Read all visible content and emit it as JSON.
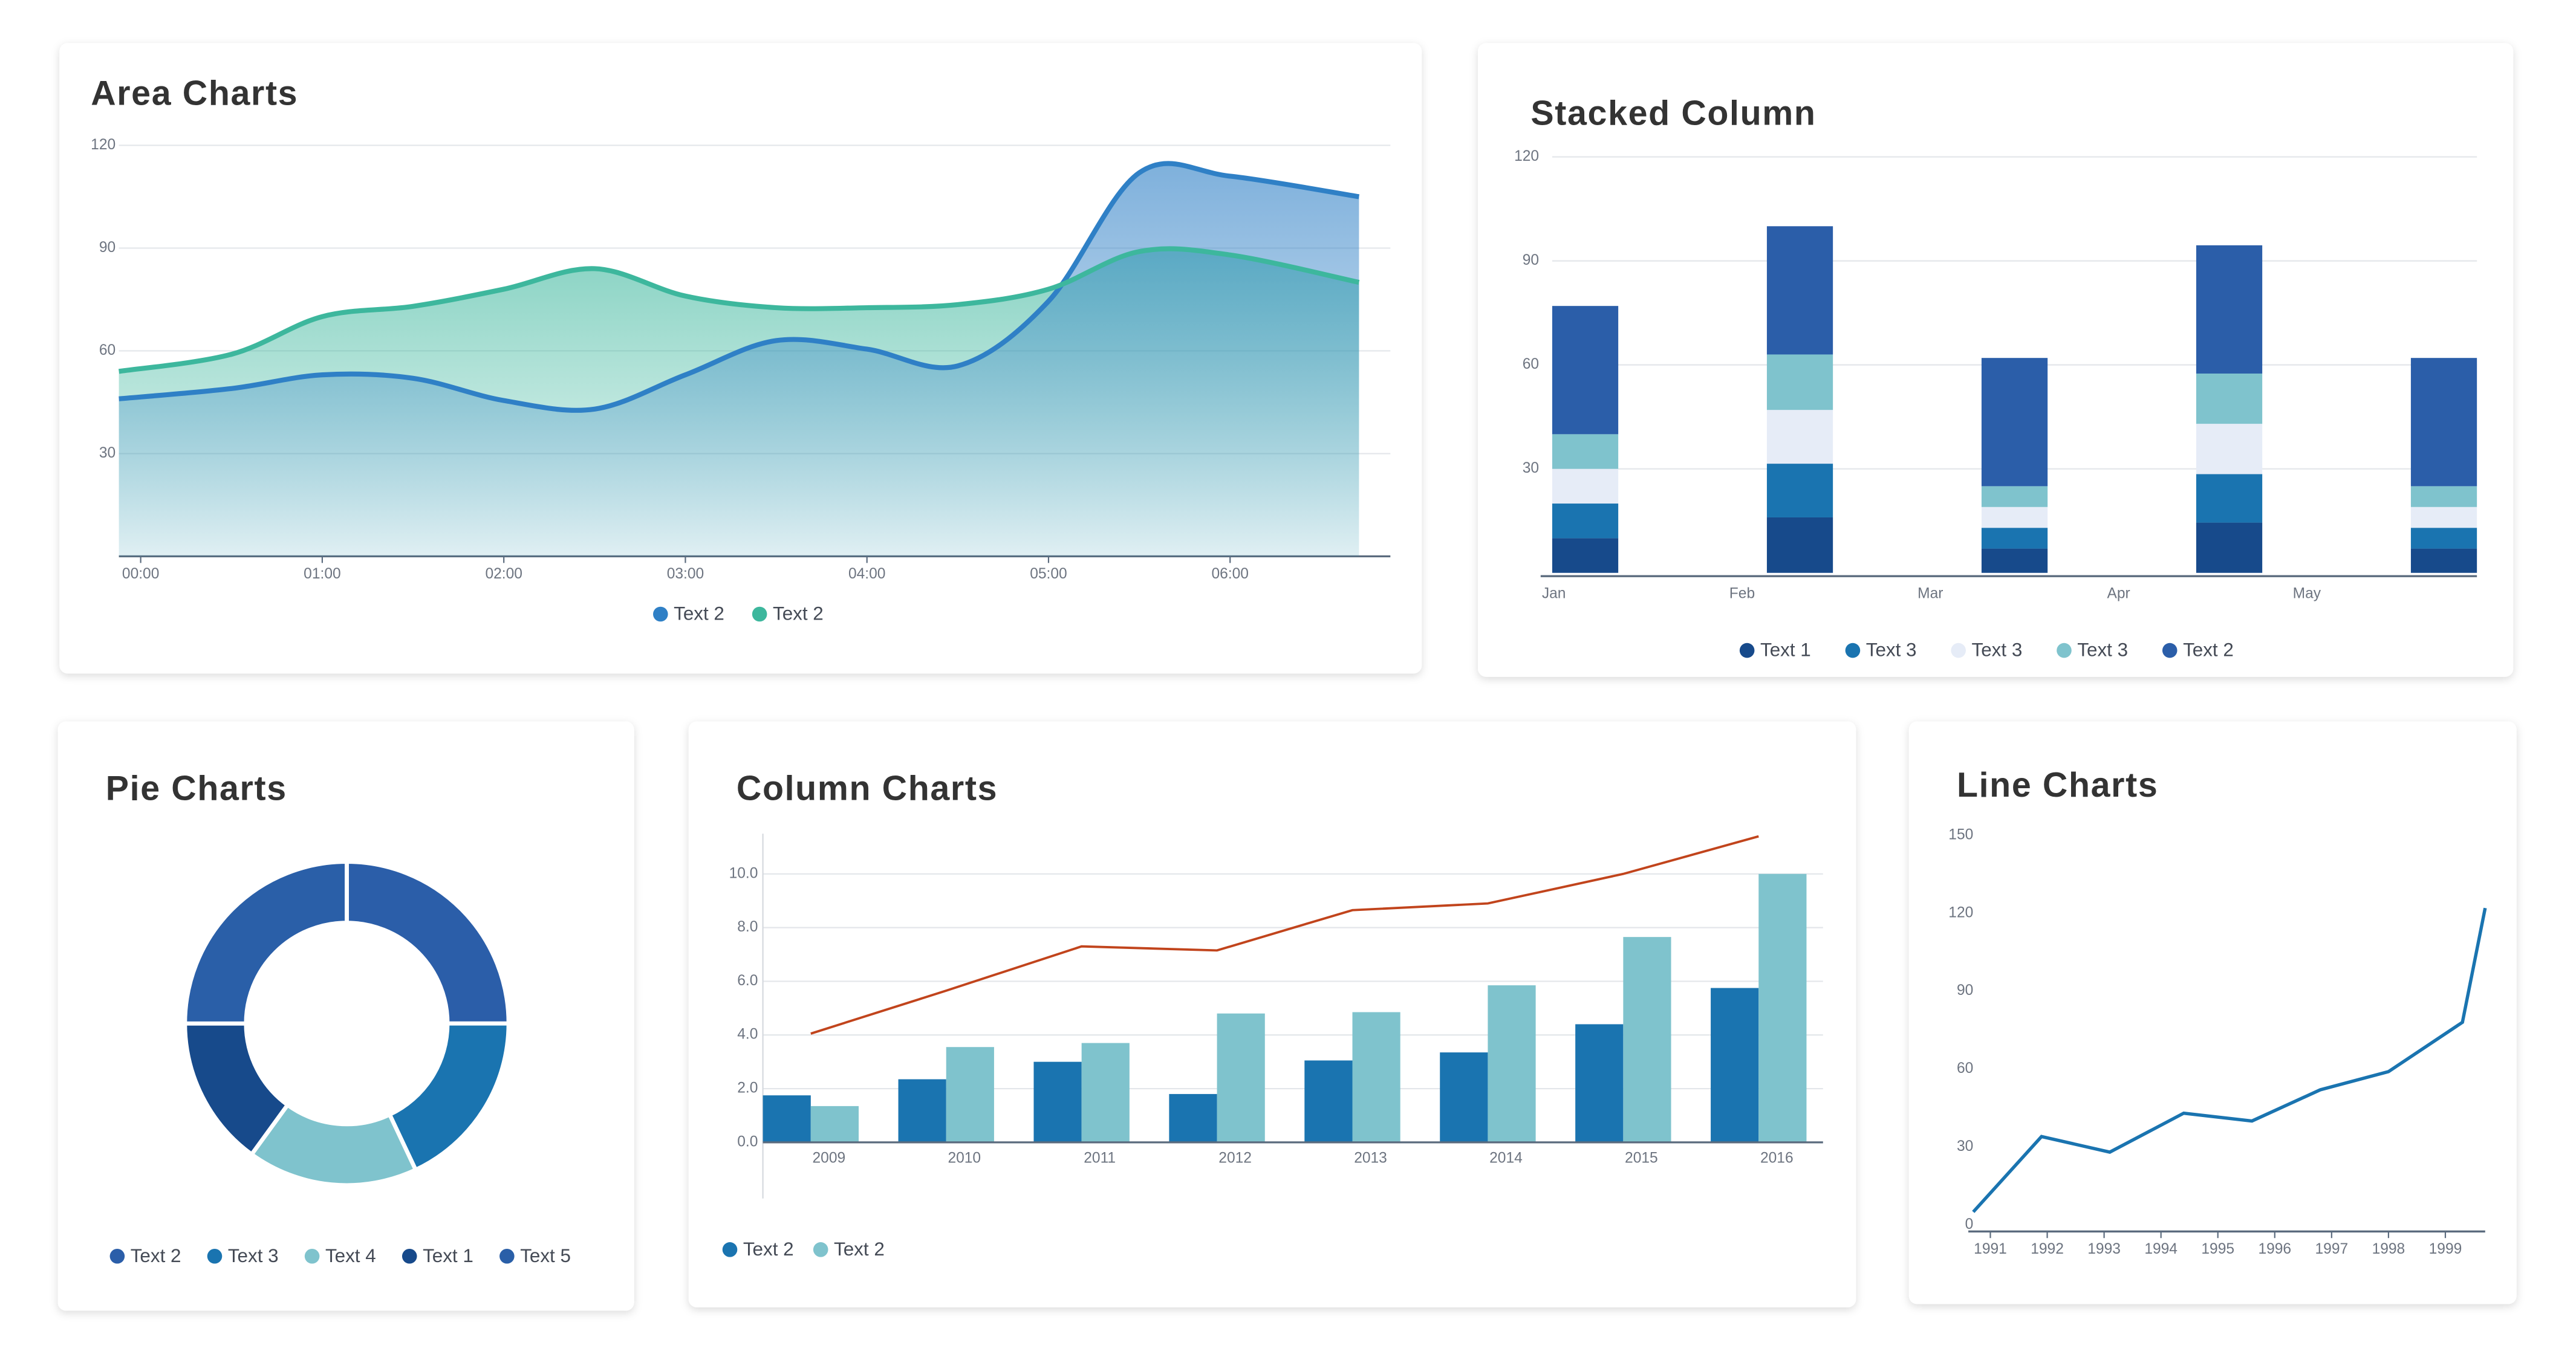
{
  "chart_data": [
    {
      "type": "area",
      "title": "Area Charts",
      "x": [
        -0.12,
        0.5,
        1,
        1.5,
        2,
        2.5,
        3,
        3.5,
        4,
        4.5,
        5,
        5.5,
        6,
        6.71
      ],
      "xlim": [
        -0.12,
        6.71
      ],
      "xticks": [
        {
          "value": 0,
          "label": "00:00"
        },
        {
          "value": 1,
          "label": "01:00"
        },
        {
          "value": 2,
          "label": "02:00"
        },
        {
          "value": 3,
          "label": "03:00"
        },
        {
          "value": 4,
          "label": "04:00"
        },
        {
          "value": 5,
          "label": "05:00"
        },
        {
          "value": 6,
          "label": "06:00"
        }
      ],
      "ylim": [
        0,
        120
      ],
      "yticks": [
        30,
        60,
        90,
        120
      ],
      "grid": true,
      "series": [
        {
          "name": "Text 2",
          "color": "#2f80c6",
          "values": [
            46,
            49,
            53,
            52,
            45.5,
            43,
            53,
            63,
            60.5,
            55.6,
            74.5,
            112,
            111,
            105
          ]
        },
        {
          "name": "Text 2",
          "color": "#3db79d",
          "values": [
            54,
            59,
            70,
            73,
            78,
            84,
            76,
            72.6,
            72.6,
            73.5,
            78,
            89,
            88,
            80
          ]
        }
      ]
    },
    {
      "type": "bar",
      "stacked": true,
      "title": "Stacked Column",
      "categories": [
        "Jan",
        "Feb",
        "Mar",
        "Apr",
        "May"
      ],
      "ylim": [
        0,
        120
      ],
      "yticks": [
        30,
        60,
        90,
        120
      ],
      "grid": true,
      "series": [
        {
          "name": "Text 1",
          "color": "#174a8b",
          "values": [
            10,
            16,
            7,
            14.5,
            7
          ]
        },
        {
          "name": "Text 3",
          "color": "#1a74b0",
          "values": [
            10,
            15.5,
            6,
            14,
            6
          ]
        },
        {
          "name": "Text 3",
          "color": "#e6ecf7",
          "values": [
            10,
            15.5,
            6,
            14.5,
            6
          ]
        },
        {
          "name": "Text 3",
          "color": "#7fc3cd",
          "values": [
            10,
            16,
            6,
            14.5,
            6
          ]
        },
        {
          "name": "Text 2",
          "color": "#2b5ea9",
          "values": [
            37,
            37,
            37,
            37,
            37
          ]
        }
      ]
    },
    {
      "type": "donut",
      "title": "Pie Charts",
      "categories": [
        "Text 2",
        "Text 3",
        "Text 4",
        "Text 1",
        "Text 5"
      ],
      "values": [
        25,
        18,
        17,
        15,
        25
      ],
      "colors": [
        "#2b5ea9",
        "#1a74b0",
        "#7fc3cd",
        "#174a8b",
        "#2a5fa8"
      ]
    },
    {
      "type": "bar",
      "stacked": false,
      "title": "Column Charts",
      "categories": [
        "2009",
        "2010",
        "2011",
        "2012",
        "2013",
        "2014",
        "2015",
        "2016"
      ],
      "ylim": [
        0,
        11.5
      ],
      "yticks": [
        {
          "value": 0,
          "label": "0.0"
        },
        {
          "value": 2,
          "label": "2.0"
        },
        {
          "value": 4,
          "label": "4.0"
        },
        {
          "value": 6,
          "label": "6.0"
        },
        {
          "value": 8,
          "label": "8.0"
        },
        {
          "value": 10,
          "label": "10.0"
        }
      ],
      "grid": true,
      "series": [
        {
          "name": "Text 2",
          "color": "#1a74b0",
          "values": [
            1.75,
            2.35,
            3.0,
            1.8,
            3.05,
            3.35,
            4.4,
            5.75
          ]
        },
        {
          "name": "Text 2",
          "color": "#7fc3cd",
          "values": [
            1.35,
            3.55,
            3.7,
            4.8,
            4.85,
            5.85,
            7.65,
            10
          ]
        },
        {
          "type": "line",
          "color": "#c1441c",
          "values": [
            4.05,
            5.65,
            7.3,
            7.15,
            8.65,
            8.9,
            10,
            11.4
          ]
        }
      ]
    },
    {
      "type": "line",
      "title": "Line Charts",
      "x": [
        1990.7,
        1991.9,
        1993.1,
        1994.4,
        1995.6,
        1996.8,
        1998,
        1999.3,
        1999.7
      ],
      "xlim": [
        1990.7,
        1999.7
      ],
      "xticks": [
        1991,
        1992,
        1993,
        1994,
        1995,
        1996,
        1997,
        1998,
        1999
      ],
      "ylim": [
        0,
        150
      ],
      "yticks": [
        0,
        30,
        60,
        90,
        120,
        150
      ],
      "grid": false,
      "series": [
        {
          "color": "#1a74b0",
          "values": [
            5,
            34,
            28,
            43,
            40,
            52,
            59,
            78,
            122
          ]
        }
      ]
    }
  ]
}
